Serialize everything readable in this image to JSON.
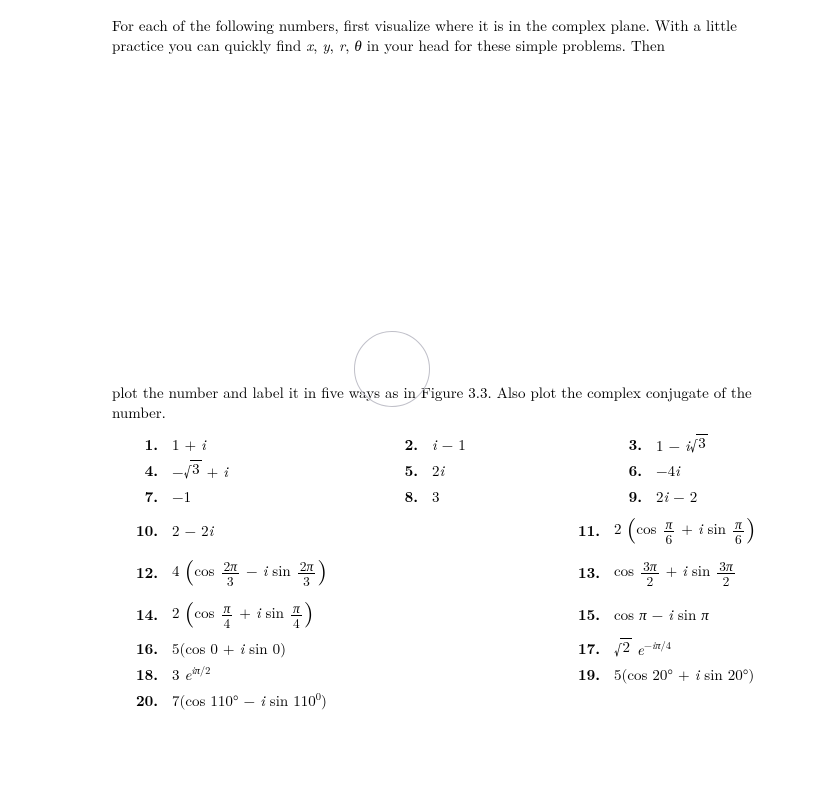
{
  "intro_top": "For each of the following numbers, first visualize where it is in the complex plane. With a little practice you can quickly find x, y, r, θ in your head for these simple problems. Then",
  "intro_bottom": "plot the number and label it in five ways as in Figure 3.3. Also plot the complex conjugate of the number.",
  "labels": {
    "p1": "1.",
    "p2": "2.",
    "p3": "3.",
    "p4": "4.",
    "p5": "5.",
    "p6": "6.",
    "p7": "7.",
    "p8": "8.",
    "p9": "9.",
    "p10": "10.",
    "p11": "11.",
    "p12": "12.",
    "p13": "13.",
    "p14": "14.",
    "p15": "15.",
    "p16": "16.",
    "p17": "17.",
    "p18": "18.",
    "p19": "19.",
    "p20": "20."
  }
}
